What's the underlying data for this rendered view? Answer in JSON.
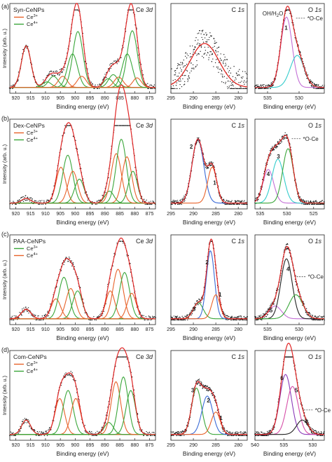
{
  "chart_data": [
    {
      "type": "scatter",
      "row": 0,
      "col": 0,
      "title": "Ce 3d",
      "sample": "Syn-CeNPs",
      "panel_letter": "(a)",
      "xlabel": "Binding energy (eV)",
      "ylabel": "Intensity (arb. u.)",
      "xlim": [
        922,
        873
      ],
      "ylim": [
        0,
        1
      ],
      "xticks": [
        920,
        915,
        910,
        905,
        900,
        895,
        890,
        885,
        880,
        875
      ],
      "legend": [
        {
          "name": "Ce3+",
          "color": "#e8622a"
        },
        {
          "name": "Ce4+",
          "color": "#3aa63a"
        }
      ],
      "components": [
        {
          "center": 916.5,
          "height": 0.52,
          "width": 1.6,
          "color": "#3aa63a"
        },
        {
          "center": 909.5,
          "height": 0.07,
          "width": 1.5,
          "color": "#3aa63a"
        },
        {
          "center": 907.3,
          "height": 0.14,
          "width": 1.6,
          "color": "#3aa63a"
        },
        {
          "center": 904.2,
          "height": 0.14,
          "width": 1.5,
          "color": "#e8622a"
        },
        {
          "center": 900.9,
          "height": 0.42,
          "width": 1.7,
          "color": "#3aa63a"
        },
        {
          "center": 899.1,
          "height": 0.7,
          "width": 1.7,
          "color": "#3aa63a"
        },
        {
          "center": 897.8,
          "height": 0.14,
          "width": 1.5,
          "color": "#e8622a"
        },
        {
          "center": 888.9,
          "height": 0.11,
          "width": 1.5,
          "color": "#3aa63a"
        },
        {
          "center": 887.2,
          "height": 0.16,
          "width": 1.6,
          "color": "#3aa63a"
        },
        {
          "center": 885.4,
          "height": 0.13,
          "width": 1.5,
          "color": "#e8622a"
        },
        {
          "center": 882.5,
          "height": 0.42,
          "width": 1.7,
          "color": "#3aa63a"
        },
        {
          "center": 880.8,
          "height": 0.71,
          "width": 1.7,
          "color": "#3aa63a"
        },
        {
          "center": 879.2,
          "height": 0.12,
          "width": 1.4,
          "color": "#e8622a"
        }
      ],
      "labels": []
    },
    {
      "type": "scatter",
      "row": 0,
      "col": 1,
      "title": "C 1s",
      "xlabel": "Binding energy (eV)",
      "xlim": [
        295,
        278
      ],
      "ylim": [
        0,
        1
      ],
      "xticks": [
        295,
        290,
        285,
        280
      ],
      "components": [
        {
          "center": 287.5,
          "height": 0.55,
          "width": 3.2,
          "color": "#e8622a"
        }
      ],
      "noise": 0.2,
      "labels": []
    },
    {
      "type": "scatter",
      "row": 0,
      "col": 2,
      "title": "O 1s",
      "xlabel": "Binding energy (eV)",
      "xlim": [
        537,
        526
      ],
      "ylim": [
        0,
        1
      ],
      "xticks": [
        535,
        530
      ],
      "components": [
        {
          "center": 532.0,
          "height": 0.88,
          "width": 0.9,
          "color": "#c36fd6"
        },
        {
          "center": 530.3,
          "height": 0.4,
          "width": 1.1,
          "color": "#33cccc"
        }
      ],
      "labels": [
        {
          "text": "OH/H2O",
          "x": 535.8,
          "y": 0.92
        },
        {
          "text": "1",
          "x": 532.3,
          "y": 0.74
        },
        {
          "text": "*O-Ce",
          "x": 528.7,
          "y": 0.86
        }
      ]
    },
    {
      "type": "scatter",
      "row": 1,
      "col": 0,
      "title": "Ce 3d",
      "sample": "Dex-CeNPs",
      "panel_letter": "(b)",
      "xlabel": "Binding energy (eV)",
      "ylabel": "Intensity (arb. u.)",
      "xlim": [
        922,
        873
      ],
      "ylim": [
        0,
        1
      ],
      "xticks": [
        920,
        915,
        910,
        905,
        900,
        895,
        890,
        885,
        880,
        875
      ],
      "legend": [
        {
          "name": "Ce3+",
          "color": "#e8622a"
        },
        {
          "name": "Ce4+",
          "color": "#3aa63a"
        }
      ],
      "components": [
        {
          "center": 916.5,
          "height": 0.06,
          "width": 1.5,
          "color": "#3aa63a"
        },
        {
          "center": 904.8,
          "height": 0.45,
          "width": 1.6,
          "color": "#e8622a"
        },
        {
          "center": 902.5,
          "height": 0.6,
          "width": 1.7,
          "color": "#3aa63a"
        },
        {
          "center": 900.8,
          "height": 0.4,
          "width": 1.6,
          "color": "#e8622a"
        },
        {
          "center": 898.6,
          "height": 0.3,
          "width": 1.6,
          "color": "#3aa63a"
        },
        {
          "center": 888.5,
          "height": 0.15,
          "width": 1.5,
          "color": "#3aa63a"
        },
        {
          "center": 886.2,
          "height": 0.62,
          "width": 1.7,
          "color": "#e8622a"
        },
        {
          "center": 884.5,
          "height": 0.8,
          "width": 1.7,
          "color": "#3aa63a"
        },
        {
          "center": 882.6,
          "height": 0.58,
          "width": 1.6,
          "color": "#e8622a"
        },
        {
          "center": 880.6,
          "height": 0.4,
          "width": 1.5,
          "color": "#3aa63a"
        }
      ],
      "labels": []
    },
    {
      "type": "scatter",
      "row": 1,
      "col": 1,
      "title": "C 1s",
      "xlabel": "Binding energy (eV)",
      "xlim": [
        295,
        278
      ],
      "ylim": [
        0,
        1
      ],
      "xticks": [
        295,
        290,
        285,
        280
      ],
      "components": [
        {
          "center": 289.0,
          "height": 0.8,
          "width": 1.3,
          "color": "#3a6ad6"
        },
        {
          "center": 285.8,
          "height": 0.45,
          "width": 1.0,
          "color": "#e8622a"
        }
      ],
      "labels": [
        {
          "text": "2",
          "x": 290.8,
          "y": 0.7
        },
        {
          "text": "1",
          "x": 285.6,
          "y": 0.25
        }
      ]
    },
    {
      "type": "scatter",
      "row": 1,
      "col": 2,
      "title": "O 1s",
      "xlabel": "Binding energy (eV)",
      "xlim": [
        536,
        523
      ],
      "ylim": [
        0,
        1
      ],
      "xticks": [
        535,
        530,
        525
      ],
      "components": [
        {
          "center": 533.5,
          "height": 0.42,
          "width": 1.0,
          "color": "#c36fd6"
        },
        {
          "center": 531.7,
          "height": 0.55,
          "width": 1.1,
          "color": "#33cccc"
        },
        {
          "center": 529.8,
          "height": 0.68,
          "width": 1.0,
          "color": "#3aa63a"
        }
      ],
      "labels": [
        {
          "text": "3",
          "x": 531.9,
          "y": 0.58
        },
        {
          "text": "4",
          "x": 533.8,
          "y": 0.36
        },
        {
          "text": "*O-Ce",
          "x": 527.0,
          "y": 0.8
        }
      ]
    },
    {
      "type": "scatter",
      "row": 2,
      "col": 0,
      "title": "Ce 3d",
      "sample": "PAA-CeNPs",
      "panel_letter": "(c)",
      "xlabel": "Binding energy (eV)",
      "ylabel": "Intensity (arb. u.)",
      "xlim": [
        922,
        873
      ],
      "ylim": [
        0,
        1
      ],
      "xticks": [
        920,
        915,
        910,
        905,
        900,
        895,
        890,
        885,
        880,
        875
      ],
      "legend": [
        {
          "name": "Ce3+",
          "color": "#3aa63a"
        },
        {
          "name": "Ce4+",
          "color": "#e8622a"
        }
      ],
      "components": [
        {
          "center": 916.5,
          "height": 0.12,
          "width": 1.6,
          "color": "#e8622a"
        },
        {
          "center": 906.5,
          "height": 0.25,
          "width": 1.6,
          "color": "#e8622a"
        },
        {
          "center": 903.8,
          "height": 0.52,
          "width": 1.7,
          "color": "#3aa63a"
        },
        {
          "center": 901.5,
          "height": 0.38,
          "width": 1.6,
          "color": "#e8622a"
        },
        {
          "center": 899.2,
          "height": 0.35,
          "width": 1.6,
          "color": "#3aa63a"
        },
        {
          "center": 888.2,
          "height": 0.35,
          "width": 1.5,
          "color": "#e8622a"
        },
        {
          "center": 885.6,
          "height": 0.62,
          "width": 1.7,
          "color": "#e8622a"
        },
        {
          "center": 883.4,
          "height": 0.58,
          "width": 1.7,
          "color": "#3aa63a"
        },
        {
          "center": 881.0,
          "height": 0.32,
          "width": 1.5,
          "color": "#e8622a"
        }
      ],
      "labels": []
    },
    {
      "type": "scatter",
      "row": 2,
      "col": 1,
      "title": "C 1s",
      "xlabel": "Binding energy (eV)",
      "xlim": [
        295,
        278
      ],
      "ylim": [
        0,
        1
      ],
      "xticks": [
        295,
        290,
        285,
        280
      ],
      "components": [
        {
          "center": 288.9,
          "height": 0.2,
          "width": 1.1,
          "color": "#3aa63a"
        },
        {
          "center": 286.2,
          "height": 0.85,
          "width": 0.9,
          "color": "#3a6ad6"
        },
        {
          "center": 285.0,
          "height": 0.3,
          "width": 0.9,
          "color": "#e8622a"
        }
      ],
      "labels": [
        {
          "text": "3",
          "x": 290.2,
          "y": 0.12
        },
        {
          "text": "2",
          "x": 287.3,
          "y": 0.7
        },
        {
          "text": "1",
          "x": 284.4,
          "y": 0.3
        }
      ]
    },
    {
      "type": "scatter",
      "row": 2,
      "col": 2,
      "title": "O 1s",
      "xlabel": "Binding energy (eV)",
      "xlim": [
        537,
        526
      ],
      "ylim": [
        0,
        1
      ],
      "xticks": [
        535,
        530
      ],
      "components": [
        {
          "center": 533.8,
          "height": 0.16,
          "width": 1.0,
          "color": "#c36fd6"
        },
        {
          "center": 532.0,
          "height": 0.75,
          "width": 0.9,
          "color": "#222222"
        },
        {
          "center": 530.5,
          "height": 0.3,
          "width": 1.1,
          "color": "#3aa63a"
        }
      ],
      "labels": [
        {
          "text": "4",
          "x": 532.0,
          "y": 0.62
        },
        {
          "text": "5",
          "x": 534.7,
          "y": 0.1
        },
        {
          "text": "*O-Ce",
          "x": 528.6,
          "y": 0.52
        }
      ]
    },
    {
      "type": "scatter",
      "row": 3,
      "col": 0,
      "title": "Ce 3d",
      "sample": "Com-CeNPs",
      "panel_letter": "(d)",
      "xlabel": "Binding energy (eV)",
      "ylabel": "Intensity (arb. u.)",
      "xlim": [
        922,
        873
      ],
      "ylim": [
        0,
        1
      ],
      "xticks": [
        920,
        915,
        910,
        905,
        900,
        895,
        890,
        885,
        880,
        875
      ],
      "legend": [
        {
          "name": "Ce3+",
          "color": "#e8622a"
        },
        {
          "name": "Ce4+",
          "color": "#3aa63a"
        }
      ],
      "components": [
        {
          "center": 916.5,
          "height": 0.18,
          "width": 1.5,
          "color": "#3aa63a"
        },
        {
          "center": 905.2,
          "height": 0.45,
          "width": 1.6,
          "color": "#e8622a"
        },
        {
          "center": 902.4,
          "height": 0.55,
          "width": 1.7,
          "color": "#3aa63a"
        },
        {
          "center": 899.8,
          "height": 0.45,
          "width": 1.6,
          "color": "#e8622a"
        },
        {
          "center": 888.7,
          "height": 0.15,
          "width": 1.5,
          "color": "#3aa63a"
        },
        {
          "center": 886.3,
          "height": 0.66,
          "width": 1.6,
          "color": "#e8622a"
        },
        {
          "center": 883.8,
          "height": 0.72,
          "width": 1.6,
          "color": "#3aa63a"
        },
        {
          "center": 881.3,
          "height": 0.55,
          "width": 1.6,
          "color": "#3aa63a"
        }
      ],
      "labels": []
    },
    {
      "type": "scatter",
      "row": 3,
      "col": 1,
      "title": "C 1s",
      "xlabel": "Binding energy (eV)",
      "xlim": [
        295,
        278
      ],
      "ylim": [
        0,
        1
      ],
      "xticks": [
        295,
        290,
        285,
        280
      ],
      "components": [
        {
          "center": 289.3,
          "height": 0.58,
          "width": 1.1,
          "color": "#3aa63a"
        },
        {
          "center": 286.9,
          "height": 0.48,
          "width": 1.2,
          "color": "#3a6ad6"
        },
        {
          "center": 285.0,
          "height": 0.28,
          "width": 1.0,
          "color": "#e8622a"
        }
      ],
      "labels": [
        {
          "text": "3",
          "x": 290.5,
          "y": 0.55
        },
        {
          "text": "2",
          "x": 287.0,
          "y": 0.42
        },
        {
          "text": "1",
          "x": 284.2,
          "y": 0.2
        }
      ]
    },
    {
      "type": "scatter",
      "row": 3,
      "col": 2,
      "title": "O 1s",
      "xlabel": "Binding energy (eV)",
      "xlim": [
        540,
        528
      ],
      "ylim": [
        0,
        1
      ],
      "xticks": [
        540,
        535,
        530
      ],
      "components": [
        {
          "center": 534.7,
          "height": 0.75,
          "width": 1.0,
          "color": "#8a3ab9"
        },
        {
          "center": 533.5,
          "height": 0.6,
          "width": 1.0,
          "color": "#d64fa8"
        },
        {
          "center": 531.8,
          "height": 0.18,
          "width": 1.0,
          "color": "#222222"
        }
      ],
      "labels": [
        {
          "text": "6",
          "x": 535.6,
          "y": 0.7
        },
        {
          "text": "5",
          "x": 533.1,
          "y": 0.55
        },
        {
          "text": "4",
          "x": 531.4,
          "y": 0.16
        },
        {
          "text": "*O-Ce",
          "x": 529.6,
          "y": 0.3
        }
      ]
    }
  ]
}
